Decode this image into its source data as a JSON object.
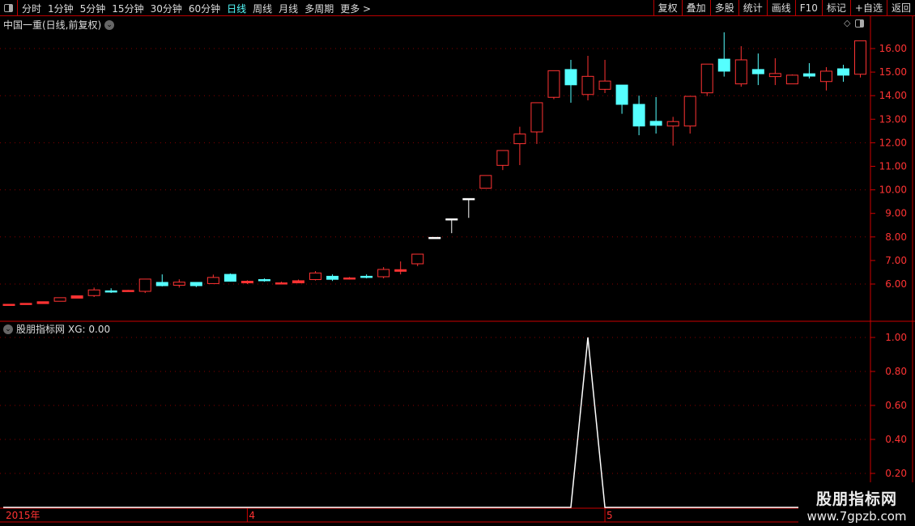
{
  "toolbar": {
    "periods": [
      "分时",
      "1分钟",
      "5分钟",
      "15分钟",
      "30分钟",
      "60分钟",
      "日线",
      "周线",
      "月线",
      "多周期",
      "更多 >"
    ],
    "active_period": "日线",
    "tools": [
      "复权",
      "叠加",
      "多股",
      "统计",
      "画线",
      "F10",
      "标记",
      "+自选",
      "返回"
    ]
  },
  "stock": {
    "title": "中国一重(日线,前复权)"
  },
  "indicator": {
    "name": "股朋指标网",
    "readout": "XG: 0.00"
  },
  "colors": {
    "up": "#ff3333",
    "down": "#55ffff",
    "flat": "#ffffff",
    "axis": "#cc0000",
    "axis_text": "#ff3333"
  },
  "chart_data": [
    {
      "type": "candlestick",
      "ylim": [
        5,
        16.8
      ],
      "yticks": [
        "16.00",
        "15.00",
        "14.00",
        "13.00",
        "12.00",
        "11.00",
        "10.00",
        "9.00",
        "8.00",
        "7.00",
        "6.00"
      ],
      "xticks": [
        {
          "label": "2015年",
          "index": 0
        },
        {
          "label": "4",
          "index": 14
        },
        {
          "label": "5",
          "index": 35
        }
      ],
      "ohlc": [
        [
          5.12,
          5.14,
          5.12,
          5.14
        ],
        [
          5.16,
          5.18,
          5.16,
          5.18
        ],
        [
          5.17,
          5.25,
          5.17,
          5.25
        ],
        [
          5.27,
          5.42,
          5.27,
          5.42
        ],
        [
          5.4,
          5.5,
          5.4,
          5.5
        ],
        [
          5.51,
          5.85,
          5.45,
          5.75
        ],
        [
          5.71,
          5.82,
          5.62,
          5.7
        ],
        [
          5.68,
          5.75,
          5.68,
          5.73
        ],
        [
          5.69,
          6.21,
          5.62,
          6.21
        ],
        [
          6.07,
          6.41,
          5.9,
          5.93
        ],
        [
          5.95,
          6.2,
          5.85,
          6.08
        ],
        [
          6.07,
          6.07,
          5.87,
          5.93
        ],
        [
          6.02,
          6.4,
          6.02,
          6.28
        ],
        [
          6.41,
          6.45,
          6.1,
          6.12
        ],
        [
          6.05,
          6.16,
          6.0,
          6.12
        ],
        [
          6.19,
          6.24,
          6.1,
          6.17
        ],
        [
          6.0,
          6.1,
          6.0,
          6.05
        ],
        [
          6.05,
          6.19,
          6.05,
          6.14
        ],
        [
          6.19,
          6.55,
          6.15,
          6.47
        ],
        [
          6.33,
          6.41,
          6.13,
          6.2
        ],
        [
          6.24,
          6.3,
          6.19,
          6.26
        ],
        [
          6.33,
          6.41,
          6.24,
          6.32
        ],
        [
          6.31,
          6.72,
          6.24,
          6.62
        ],
        [
          6.54,
          6.96,
          6.41,
          6.61
        ],
        [
          6.86,
          7.27,
          6.76,
          7.27
        ],
        [
          7.98,
          7.98,
          7.98,
          7.98
        ],
        [
          8.77,
          8.77,
          8.16,
          8.77
        ],
        [
          9.63,
          9.63,
          8.81,
          9.63
        ],
        [
          10.07,
          10.62,
          10.07,
          10.61
        ],
        [
          11.04,
          11.67,
          10.84,
          11.67
        ],
        [
          11.96,
          12.68,
          11.05,
          12.37
        ],
        [
          12.46,
          13.7,
          11.95,
          13.7
        ],
        [
          13.93,
          15.06,
          13.85,
          15.06
        ],
        [
          15.11,
          15.52,
          13.7,
          14.46
        ],
        [
          14.05,
          15.69,
          13.8,
          14.82
        ],
        [
          14.27,
          15.52,
          14.11,
          14.62
        ],
        [
          14.45,
          14.45,
          13.23,
          13.63
        ],
        [
          13.63,
          14.0,
          12.32,
          12.71
        ],
        [
          12.91,
          13.94,
          12.39,
          12.74
        ],
        [
          12.71,
          13.1,
          11.88,
          12.9
        ],
        [
          12.71,
          13.97,
          12.39,
          13.97
        ],
        [
          14.12,
          15.34,
          13.98,
          15.34
        ],
        [
          15.55,
          16.69,
          14.81,
          15.04
        ],
        [
          14.5,
          16.1,
          14.38,
          15.52
        ],
        [
          15.11,
          15.79,
          14.45,
          14.93
        ],
        [
          14.81,
          15.59,
          14.45,
          14.94
        ],
        [
          14.5,
          14.9,
          14.5,
          14.87
        ],
        [
          14.93,
          15.38,
          14.73,
          14.83
        ],
        [
          14.6,
          15.21,
          14.22,
          15.04
        ],
        [
          15.14,
          15.31,
          14.59,
          14.87
        ],
        [
          14.91,
          16.33,
          14.77,
          16.33
        ]
      ]
    },
    {
      "type": "line",
      "name": "XG",
      "ylim": [
        0,
        1.05
      ],
      "yticks": [
        "1.00",
        "0.80",
        "0.60",
        "0.40",
        "0.20"
      ],
      "values": [
        0,
        0,
        0,
        0,
        0,
        0,
        0,
        0,
        0,
        0,
        0,
        0,
        0,
        0,
        0,
        0,
        0,
        0,
        0,
        0,
        0,
        0,
        0,
        0,
        0,
        0,
        0,
        0,
        0,
        0,
        0,
        0,
        0,
        0,
        1,
        0,
        0,
        0,
        0,
        0,
        0,
        0,
        0,
        0,
        0,
        0,
        0,
        0,
        0,
        0,
        0
      ]
    }
  ],
  "watermark": {
    "name": "股朋指标网",
    "url": "www.7gpzb.com"
  }
}
